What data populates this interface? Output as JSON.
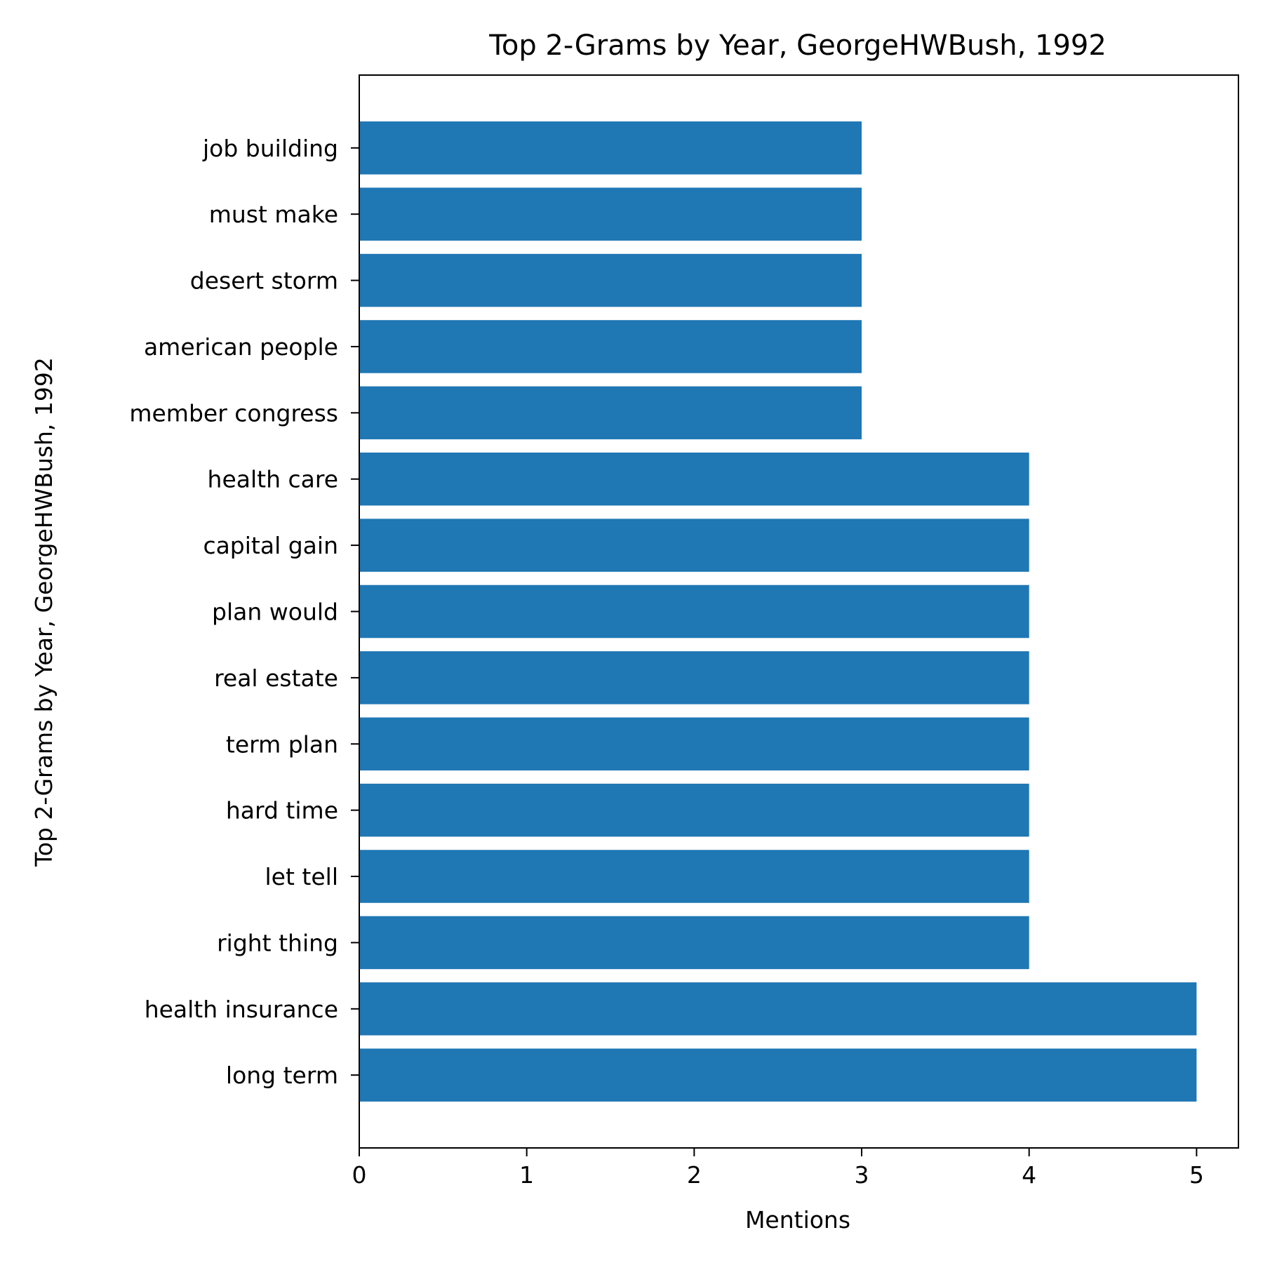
{
  "chart_data": {
    "type": "bar",
    "orientation": "horizontal",
    "title": "Top 2-Grams by Year, GeorgeHWBush, 1992",
    "xlabel": "Mentions",
    "ylabel": "Top 2-Grams by Year, GeorgeHWBush, 1992",
    "categories": [
      "long term",
      "health insurance",
      "right thing",
      "let tell",
      "hard time",
      "term plan",
      "real estate",
      "plan would",
      "capital gain",
      "health care",
      "member congress",
      "american people",
      "desert storm",
      "must make",
      "job building"
    ],
    "values": [
      5,
      5,
      4,
      4,
      4,
      4,
      4,
      4,
      4,
      4,
      3,
      3,
      3,
      3,
      3
    ],
    "xlim": [
      0,
      5.25
    ],
    "xticks": [
      "0",
      "1",
      "2",
      "3",
      "4",
      "5"
    ],
    "grid": false,
    "bar_color": "#1f77b4"
  }
}
